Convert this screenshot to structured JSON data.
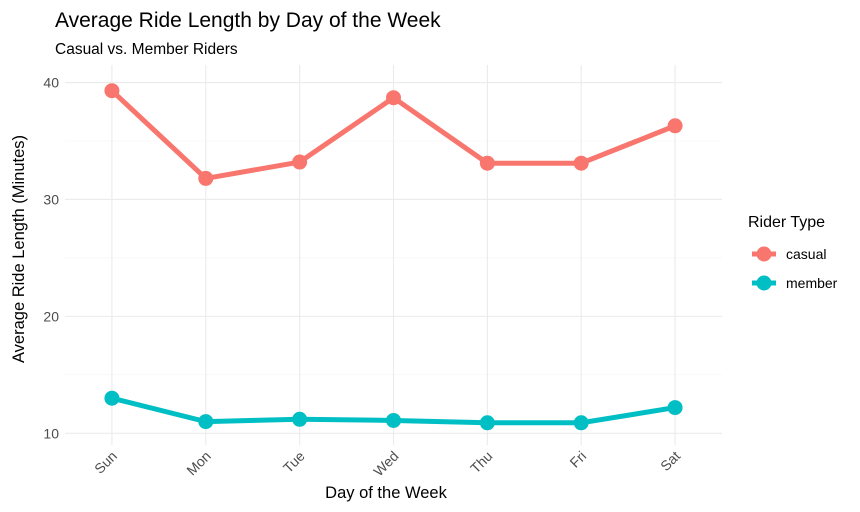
{
  "chart_data": {
    "type": "line",
    "title": "Average Ride Length by Day of the Week",
    "subtitle": "Casual vs. Member Riders",
    "xlabel": "Day of the Week",
    "ylabel": "Average Ride Length (Minutes)",
    "categories": [
      "Sun",
      "Mon",
      "Tue",
      "Wed",
      "Thu",
      "Fri",
      "Sat"
    ],
    "ylim": [
      9,
      41.5
    ],
    "yticks": [
      10,
      20,
      30,
      40
    ],
    "grid": true,
    "legend": {
      "title": "Rider Type",
      "position": "right"
    },
    "series": [
      {
        "name": "casual",
        "color": "#F8766D",
        "values": [
          39.3,
          31.8,
          33.2,
          38.7,
          33.1,
          33.1,
          36.3
        ]
      },
      {
        "name": "member",
        "color": "#00BFC4",
        "values": [
          13.0,
          11.0,
          11.2,
          11.1,
          10.9,
          10.9,
          12.2
        ]
      }
    ]
  }
}
